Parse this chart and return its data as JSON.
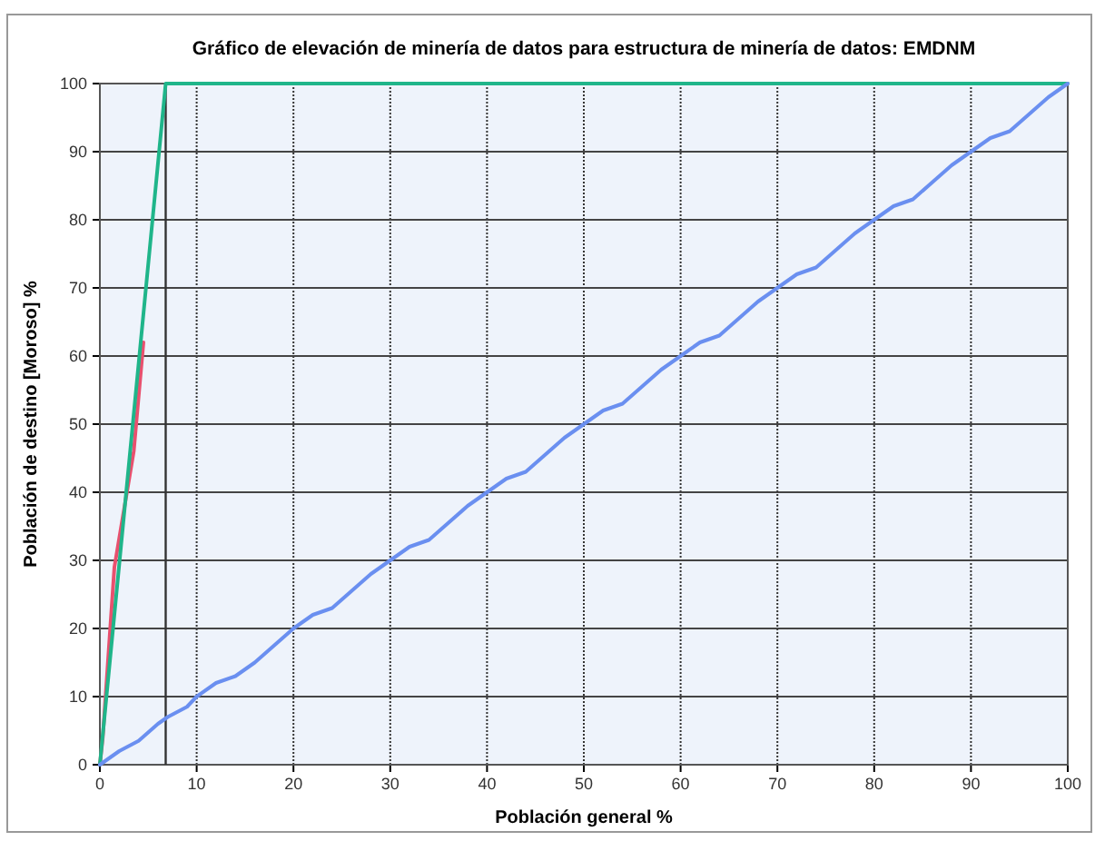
{
  "chart_data": {
    "type": "line",
    "title": "Gráfico de elevación de minería de datos para estructura de minería de datos: EMDNM",
    "xlabel": "Población general %",
    "ylabel": "Población de destino [Moroso] %",
    "xlim": [
      0,
      100
    ],
    "ylim": [
      0,
      100
    ],
    "xticks": [
      0,
      10,
      20,
      30,
      40,
      50,
      60,
      70,
      80,
      90,
      100
    ],
    "yticks": [
      0,
      10,
      20,
      30,
      40,
      50,
      60,
      70,
      80,
      90,
      100
    ],
    "grid": true,
    "marker": "none",
    "line_style": "solid",
    "series": [
      {
        "color": "#e8506e",
        "x": [
          0,
          0.3,
          1.5,
          3.5,
          4.5
        ],
        "values": [
          0,
          4,
          29,
          46,
          62
        ]
      },
      {
        "color": "#1fb58a",
        "x": [
          0,
          6.8,
          100
        ],
        "values": [
          0,
          100,
          100
        ]
      },
      {
        "color": "#6a8ff0",
        "x": [
          0,
          2,
          4,
          6,
          7,
          9,
          10,
          12,
          14,
          16,
          18,
          20,
          22,
          24,
          26,
          28,
          30,
          32,
          34,
          36,
          38,
          40,
          42,
          44,
          46,
          48,
          50,
          52,
          54,
          56,
          58,
          60,
          62,
          64,
          66,
          68,
          70,
          72,
          74,
          76,
          78,
          80,
          82,
          84,
          86,
          88,
          90,
          92,
          94,
          96,
          98,
          100
        ],
        "values": [
          0,
          2,
          3.5,
          6,
          7,
          8.5,
          10,
          12,
          13,
          15,
          17.5,
          20,
          22,
          23,
          25.5,
          28,
          30,
          32,
          33,
          35.5,
          38,
          40,
          42,
          43,
          45.5,
          48,
          50,
          52,
          53,
          55.5,
          58,
          60,
          62,
          63,
          65.5,
          68,
          70,
          72,
          73,
          75.5,
          78,
          80,
          82,
          83,
          85.5,
          88,
          90,
          92,
          93,
          95.5,
          98,
          100
        ]
      }
    ],
    "ref_lines": [
      {
        "axis": "x",
        "value": 6.8,
        "color": "#333333",
        "line_style": "solid"
      }
    ]
  }
}
